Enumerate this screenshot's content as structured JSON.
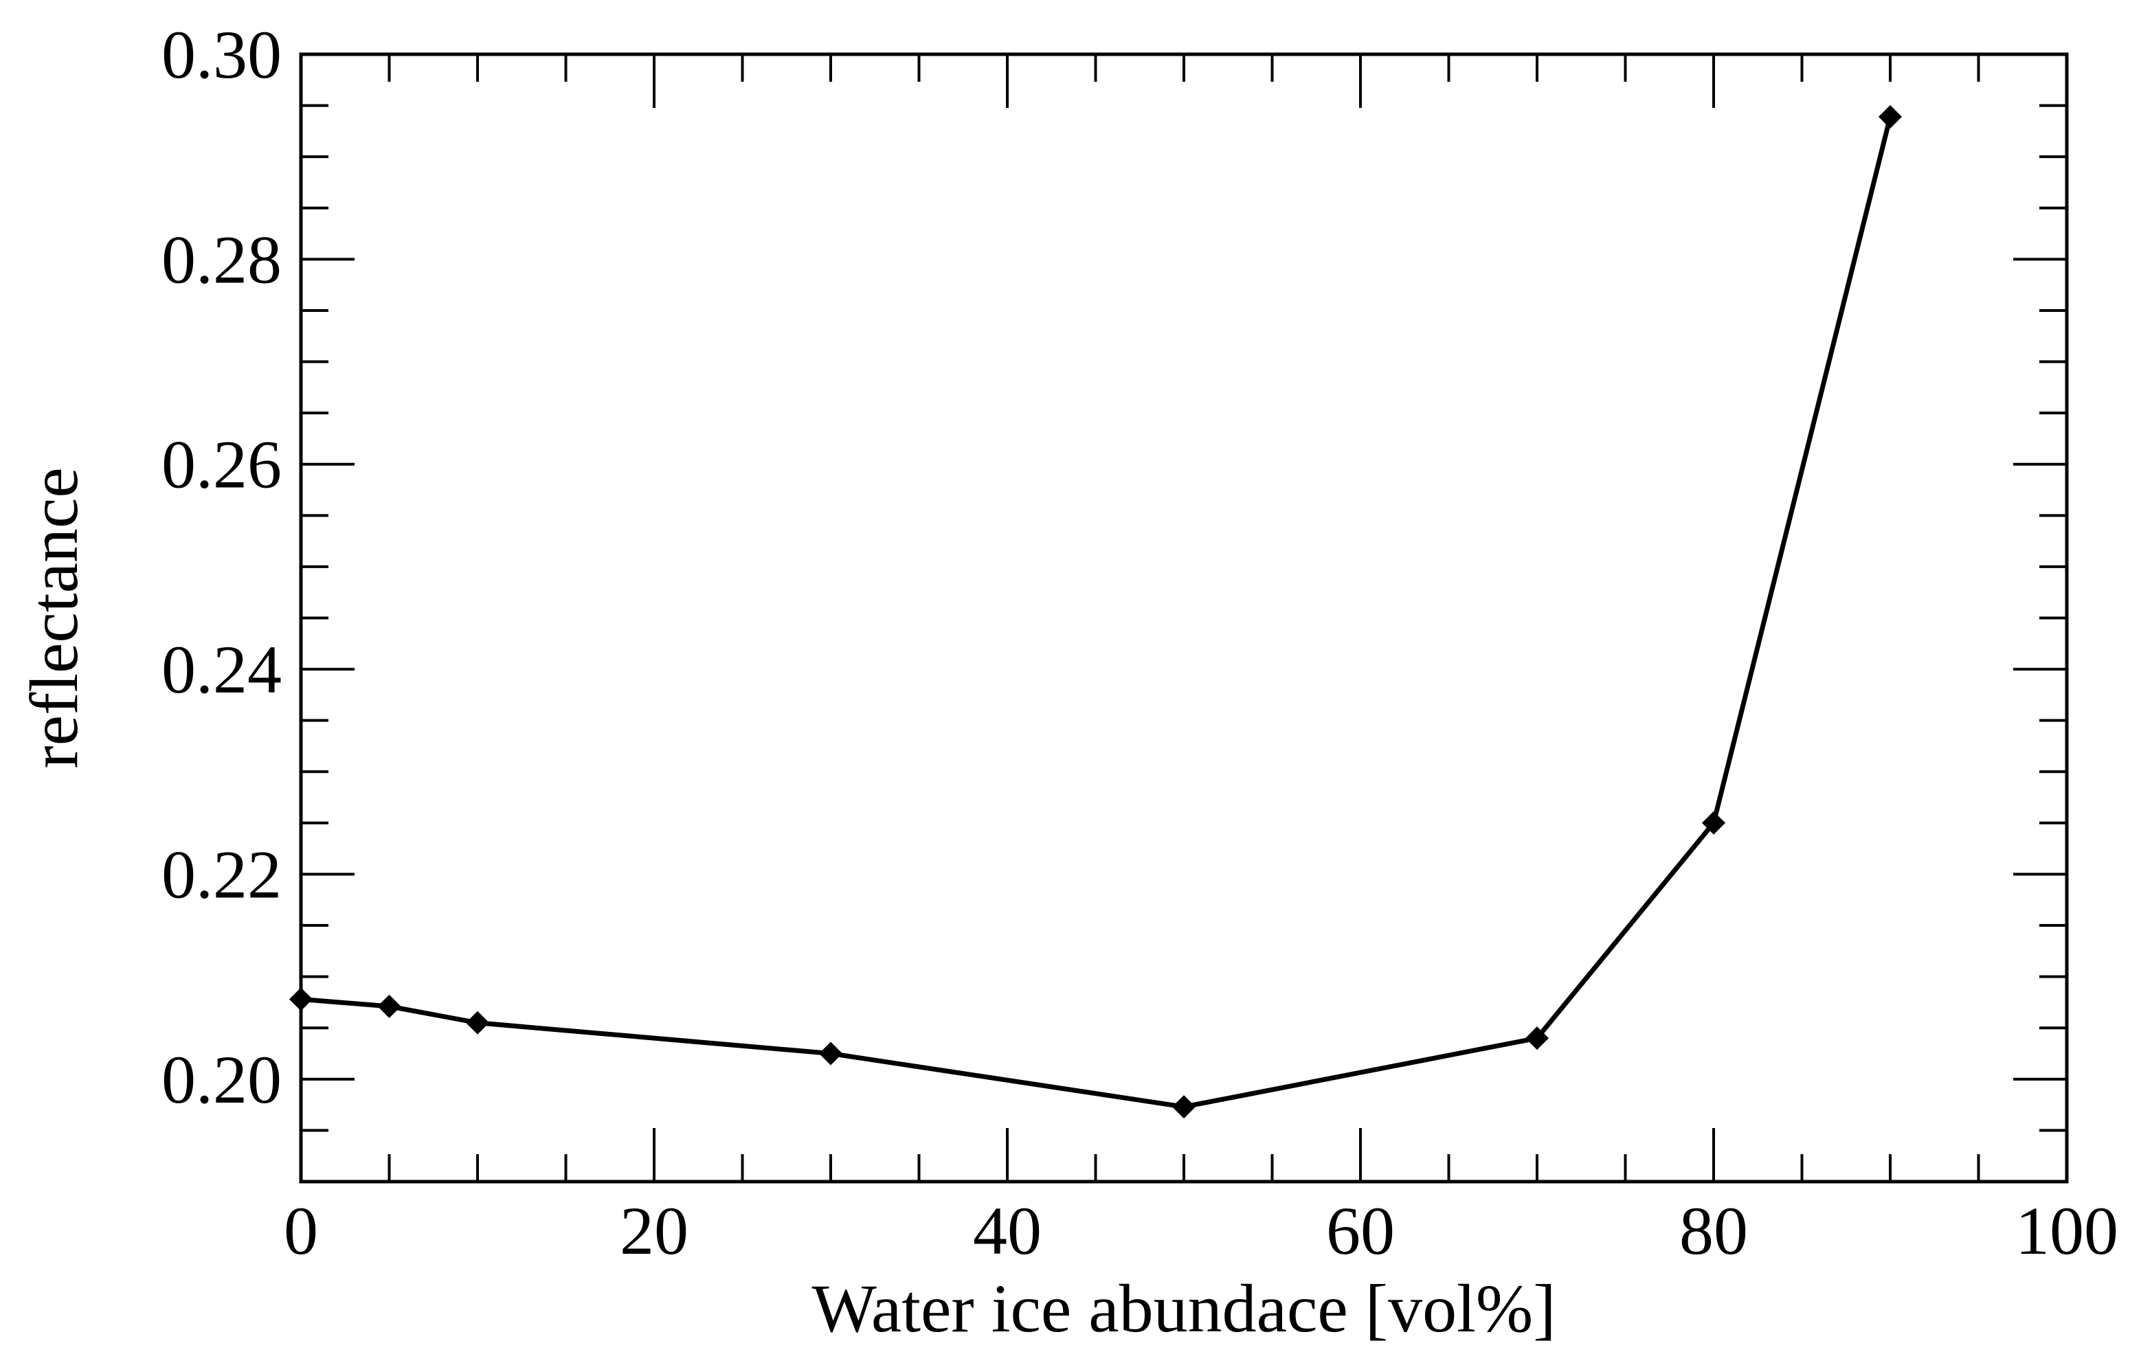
{
  "chart_data": {
    "type": "line",
    "title": "",
    "xlabel": "Water ice abundace [vol%]",
    "ylabel": "reflectance",
    "xlim": [
      0,
      100
    ],
    "ylim": [
      0.19,
      0.3
    ],
    "x_ticks": [
      0,
      20,
      40,
      60,
      80,
      100
    ],
    "x_tick_labels": [
      "0",
      "20",
      "40",
      "60",
      "80",
      "100"
    ],
    "y_ticks": [
      0.2,
      0.22,
      0.24,
      0.26,
      0.28,
      0.3
    ],
    "y_tick_labels": [
      "0.20",
      "0.22",
      "0.24",
      "0.26",
      "0.28",
      "0.30"
    ],
    "x_minor_step": 5,
    "y_minor_step": 0.005,
    "grid": false,
    "legend": "none",
    "marker": "diamond",
    "line_color": "#000000",
    "series": [
      {
        "x": [
          0,
          5,
          10,
          30,
          50,
          70,
          80,
          90
        ],
        "y": [
          0.2078,
          0.2071,
          0.2055,
          0.2025,
          0.1973,
          0.204,
          0.225,
          0.2939
        ]
      }
    ]
  }
}
